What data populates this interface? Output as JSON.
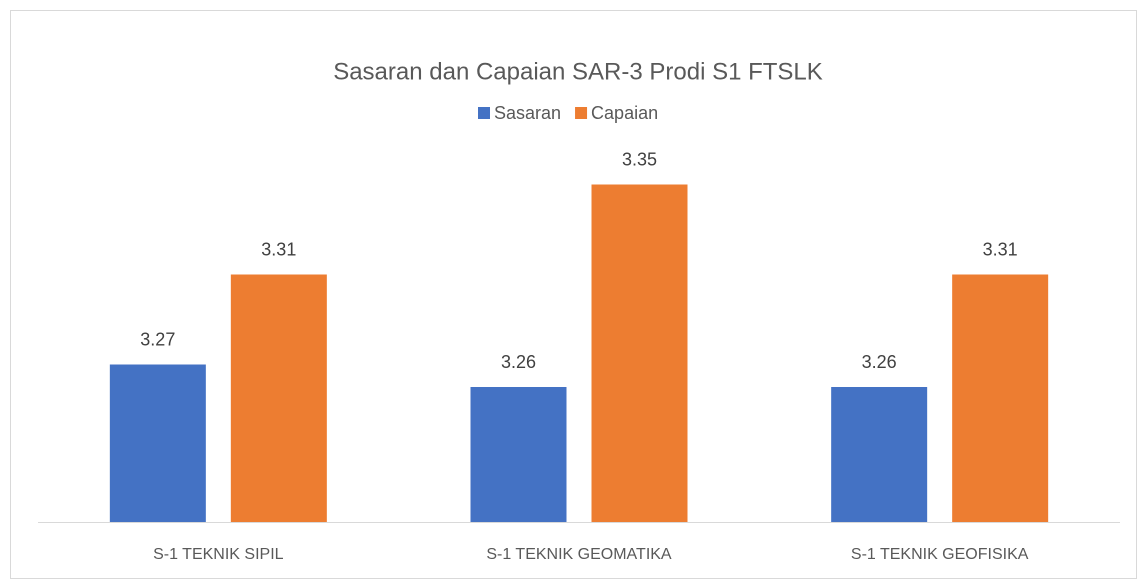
{
  "chart_data": {
    "type": "bar",
    "title": "Sasaran dan Capaian SAR-3 Prodi S1 FTSLK",
    "categories": [
      "S-1 TEKNIK SIPIL",
      "S-1 TEKNIK GEOMATIKA",
      "S-1 TEKNIK GEOFISIKA"
    ],
    "series": [
      {
        "name": "Sasaran",
        "color": "#4472c4",
        "values": [
          3.27,
          3.26,
          3.26
        ]
      },
      {
        "name": "Capaian",
        "color": "#ed7d31",
        "values": [
          3.31,
          3.35,
          3.31
        ]
      }
    ],
    "ylim": [
      3.2,
      3.36
    ],
    "legend": "top"
  }
}
